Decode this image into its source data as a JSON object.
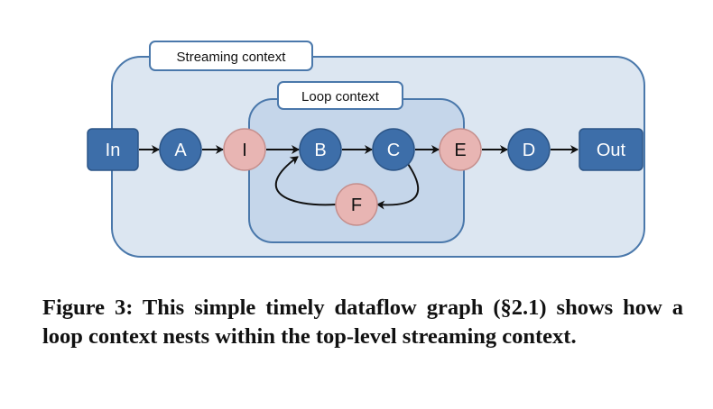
{
  "diagram": {
    "streaming_context_label": "Streaming context",
    "loop_context_label": "Loop context",
    "nodes": {
      "in": "In",
      "a": "A",
      "i": "I",
      "b": "B",
      "c": "C",
      "e": "E",
      "d": "D",
      "out": "Out",
      "f": "F"
    },
    "colors": {
      "streaming_fill": "#dce6f1",
      "streaming_stroke": "#4a78ab",
      "loop_fill": "#c5d6ea",
      "loop_stroke": "#4a78ab",
      "vertex_blue": "#3d6ea9",
      "vertex_pink": "#e8b5b3",
      "edge": "#111111"
    }
  },
  "caption": {
    "text": "Figure 3: This simple timely dataflow graph (§2.1) shows how a loop context nests within the top-level streaming context."
  }
}
